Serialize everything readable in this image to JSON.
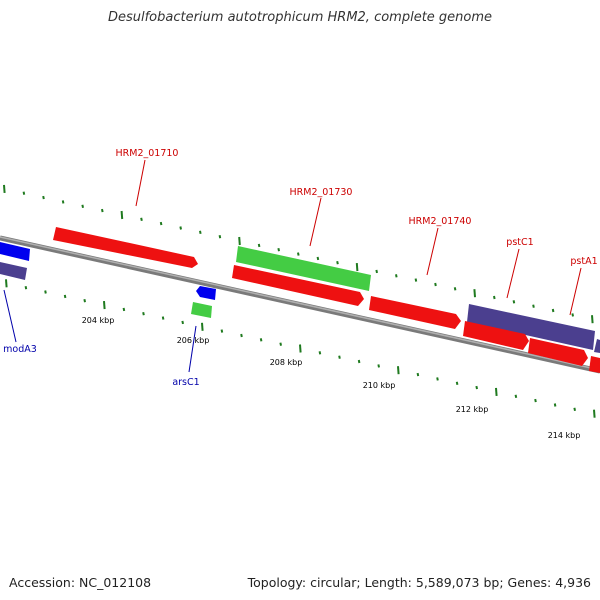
{
  "title": "Desulfobacterium autotrophicum HRM2, complete genome",
  "footer": {
    "accession": "Accession: NC_012108",
    "summary": "Topology: circular; Length: 5,589,073 bp; Genes: 4,936"
  },
  "colors": {
    "backbone": "#8a8a8a",
    "ticks": "#1f7a1f",
    "forward_cds": "#4b3f8f",
    "reverse_cds": "#ee1111",
    "rna": "#44cc44",
    "blue_gene": "#0000ee",
    "label_dark_red": "#cc0000",
    "label_blue": "#0000aa"
  },
  "kbp_labels": [
    "204 kbp",
    "206 kbp",
    "208 kbp",
    "210 kbp",
    "212 kbp",
    "214 kbp"
  ],
  "gene_labels": [
    {
      "name": "modA3",
      "strand": "minus"
    },
    {
      "name": "HRM2_01710",
      "strand": "plus"
    },
    {
      "name": "arsC1",
      "strand": "minus"
    },
    {
      "name": "HRM2_01730",
      "strand": "plus"
    },
    {
      "name": "HRM2_01740",
      "strand": "plus"
    },
    {
      "name": "pstC1",
      "strand": "plus"
    },
    {
      "name": "pstA1",
      "strand": "plus"
    }
  ]
}
